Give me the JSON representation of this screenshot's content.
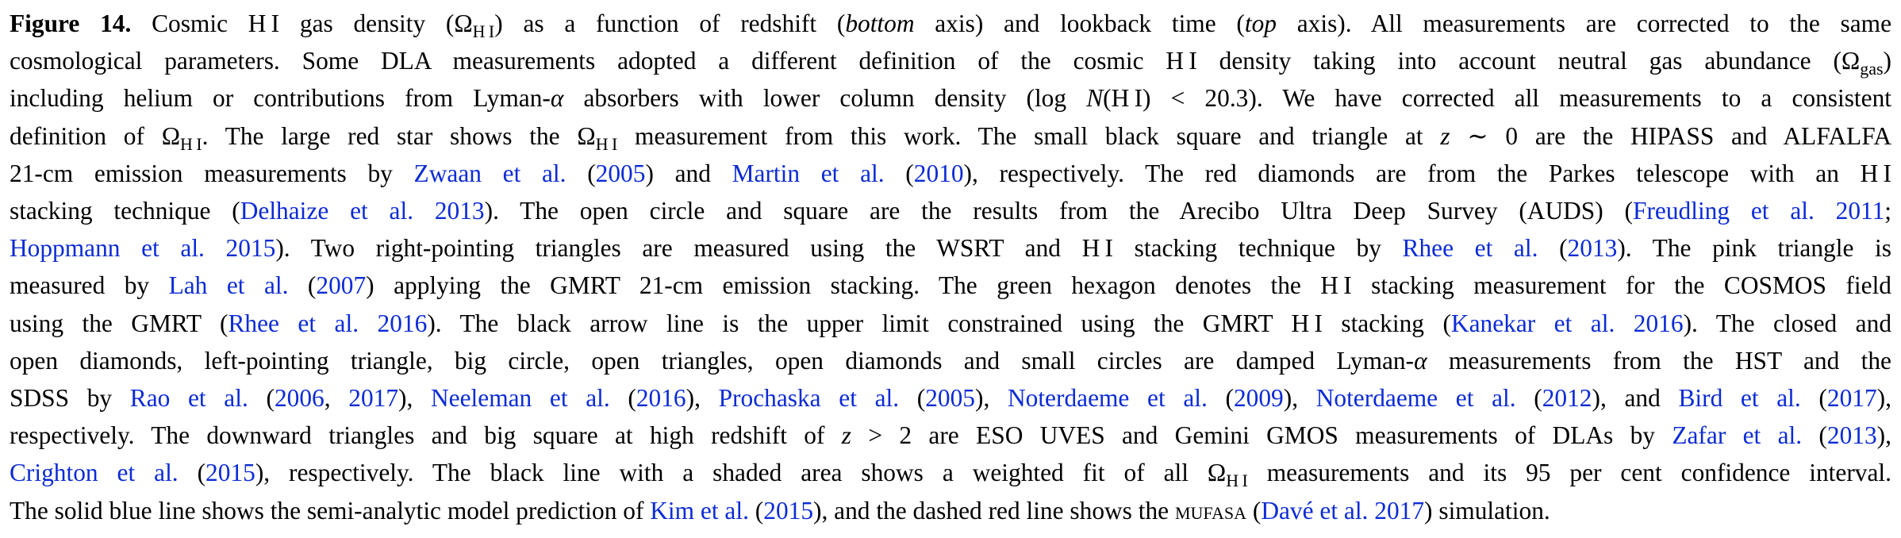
{
  "caption": {
    "label": "Figure 14.",
    "lines": [
      [
        {
          "t": "Cosmic H I gas density (Ω"
        },
        {
          "t": "H I",
          "k": "sub"
        },
        {
          "t": ") as a function of redshift ("
        },
        {
          "t": "bottom",
          "k": "it"
        },
        {
          "t": " axis) and lookback time ("
        },
        {
          "t": "top",
          "k": "it"
        },
        {
          "t": " axis). All measurements are corrected to the same"
        }
      ],
      [
        {
          "t": "cosmological parameters. Some DLA measurements adopted a different definition of the cosmic H I density taking into account neutral gas abundance (Ω"
        },
        {
          "t": "gas",
          "k": "sub"
        },
        {
          "t": ")"
        }
      ],
      [
        {
          "t": "including helium or contributions from Lyman-"
        },
        {
          "t": "α",
          "k": "it"
        },
        {
          "t": " absorbers with lower column density (log "
        },
        {
          "t": "N",
          "k": "it"
        },
        {
          "t": "(H I) < 20.3). We have corrected all measurements to a consistent"
        }
      ],
      [
        {
          "t": "definition of Ω"
        },
        {
          "t": "H I",
          "k": "sub"
        },
        {
          "t": ". The large red star shows the Ω"
        },
        {
          "t": "H I",
          "k": "sub"
        },
        {
          "t": " measurement from this work. The small black square and triangle at "
        },
        {
          "t": "z",
          "k": "it"
        },
        {
          "t": " ∼ 0 are the HIPASS and ALFALFA"
        }
      ],
      [
        {
          "t": "21-cm emission measurements by "
        },
        {
          "t": "Zwaan et al.",
          "k": "lnk"
        },
        {
          "t": " ("
        },
        {
          "t": "2005",
          "k": "lnk"
        },
        {
          "t": ") and "
        },
        {
          "t": "Martin et al.",
          "k": "lnk"
        },
        {
          "t": " ("
        },
        {
          "t": "2010",
          "k": "lnk"
        },
        {
          "t": "), respectively. The red diamonds are from the Parkes telescope with an H I"
        }
      ],
      [
        {
          "t": "stacking technique ("
        },
        {
          "t": "Delhaize et al. 2013",
          "k": "lnk"
        },
        {
          "t": "). The open circle and square are the results from the Arecibo Ultra Deep Survey (AUDS) ("
        },
        {
          "t": "Freudling et al. 2011",
          "k": "lnk"
        },
        {
          "t": ";"
        }
      ],
      [
        {
          "t": "Hoppmann et al. 2015",
          "k": "lnk"
        },
        {
          "t": "). Two right-pointing triangles are measured using the WSRT and H I stacking technique by "
        },
        {
          "t": "Rhee et al.",
          "k": "lnk"
        },
        {
          "t": " ("
        },
        {
          "t": "2013",
          "k": "lnk"
        },
        {
          "t": "). The pink triangle is"
        }
      ],
      [
        {
          "t": "measured by "
        },
        {
          "t": "Lah et al.",
          "k": "lnk"
        },
        {
          "t": " ("
        },
        {
          "t": "2007",
          "k": "lnk"
        },
        {
          "t": ") applying the GMRT 21-cm emission stacking. The green hexagon denotes the H I stacking measurement for the COSMOS field"
        }
      ],
      [
        {
          "t": "using the GMRT ("
        },
        {
          "t": "Rhee et al. 2016",
          "k": "lnk"
        },
        {
          "t": "). The black arrow line is the upper limit constrained using the GMRT H I stacking ("
        },
        {
          "t": "Kanekar et al. 2016",
          "k": "lnk"
        },
        {
          "t": "). The closed and"
        }
      ],
      [
        {
          "t": "open diamonds, left-pointing triangle, big circle, open triangles, open diamonds and small circles are damped Lyman-"
        },
        {
          "t": "α",
          "k": "it"
        },
        {
          "t": " measurements from the HST and the"
        }
      ],
      [
        {
          "t": "SDSS by "
        },
        {
          "t": "Rao et al.",
          "k": "lnk"
        },
        {
          "t": " ("
        },
        {
          "t": "2006",
          "k": "lnk"
        },
        {
          "t": ", "
        },
        {
          "t": "2017",
          "k": "lnk"
        },
        {
          "t": "), "
        },
        {
          "t": "Neeleman et al.",
          "k": "lnk"
        },
        {
          "t": " ("
        },
        {
          "t": "2016",
          "k": "lnk"
        },
        {
          "t": "), "
        },
        {
          "t": "Prochaska et al.",
          "k": "lnk"
        },
        {
          "t": " ("
        },
        {
          "t": "2005",
          "k": "lnk"
        },
        {
          "t": "), "
        },
        {
          "t": "Noterdaeme et al.",
          "k": "lnk"
        },
        {
          "t": " ("
        },
        {
          "t": "2009",
          "k": "lnk"
        },
        {
          "t": "), "
        },
        {
          "t": "Noterdaeme et al.",
          "k": "lnk"
        },
        {
          "t": " ("
        },
        {
          "t": "2012",
          "k": "lnk"
        },
        {
          "t": "), and "
        },
        {
          "t": "Bird et al.",
          "k": "lnk"
        },
        {
          "t": " ("
        },
        {
          "t": "2017",
          "k": "lnk"
        },
        {
          "t": "),"
        }
      ],
      [
        {
          "t": "respectively. The downward triangles and big square at high redshift of "
        },
        {
          "t": "z",
          "k": "it"
        },
        {
          "t": " > 2 are ESO UVES and Gemini GMOS measurements of DLAs by "
        },
        {
          "t": "Zafar et al.",
          "k": "lnk"
        },
        {
          "t": " ("
        },
        {
          "t": "2013",
          "k": "lnk"
        },
        {
          "t": "),"
        }
      ],
      [
        {
          "t": "Crighton et al.",
          "k": "lnk"
        },
        {
          "t": " ("
        },
        {
          "t": "2015",
          "k": "lnk"
        },
        {
          "t": "), respectively. The black line with a shaded area shows a weighted fit of all Ω"
        },
        {
          "t": "H I",
          "k": "sub"
        },
        {
          "t": " measurements and its 95 per cent confidence interval."
        }
      ],
      [
        {
          "t": "The solid blue line shows the semi-analytic model prediction of "
        },
        {
          "t": "Kim et al.",
          "k": "lnk"
        },
        {
          "t": " ("
        },
        {
          "t": "2015",
          "k": "lnk"
        },
        {
          "t": "), and the dashed red line shows the "
        },
        {
          "t": "mufasa",
          "k": "sc"
        },
        {
          "t": " ("
        },
        {
          "t": "Davé et al. 2017",
          "k": "lnk"
        },
        {
          "t": ") simulation."
        }
      ]
    ]
  }
}
